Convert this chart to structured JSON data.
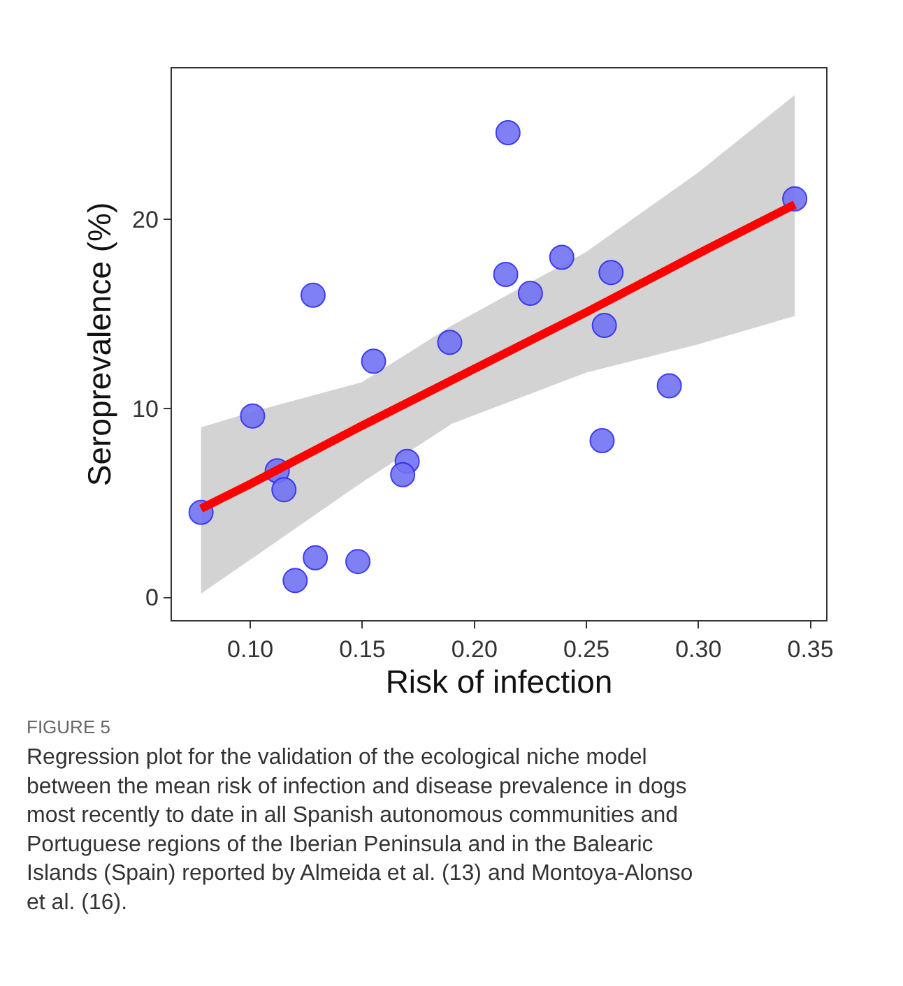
{
  "chart_data": {
    "type": "scatter",
    "xlabel": "Risk of infection",
    "ylabel": "Seroprevalence (%)",
    "series": [
      {
        "color": "#7373f5",
        "marker": "circle",
        "x": [
          0.078,
          0.101,
          0.112,
          0.115,
          0.128,
          0.12,
          0.129,
          0.148,
          0.155,
          0.17,
          0.168,
          0.189,
          0.215,
          0.214,
          0.225,
          0.239,
          0.261,
          0.258,
          0.257,
          0.287,
          0.343
        ],
        "values": [
          4.5,
          9.6,
          6.7,
          5.7,
          16.0,
          0.9,
          2.1,
          1.9,
          12.5,
          7.2,
          6.5,
          13.5,
          24.6,
          17.1,
          16.1,
          18.0,
          17.2,
          14.4,
          8.3,
          11.2,
          21.1
        ]
      },
      {
        "type": "line",
        "color": "#ff0000",
        "marker": "none",
        "line_style": "solid",
        "x": [
          0.078,
          0.1,
          0.15,
          0.19,
          0.25,
          0.3,
          0.343
        ],
        "values": [
          4.7,
          6.0,
          9.1,
          11.5,
          15.1,
          18.2,
          20.8
        ],
        "lower": [
          0.2,
          2.0,
          6.1,
          9.2,
          11.9,
          13.4,
          14.9
        ],
        "upper": [
          9.0,
          9.8,
          11.4,
          14.4,
          18.3,
          22.5,
          26.6
        ]
      }
    ],
    "xlim": [
      0.065,
      0.357
    ],
    "ylim": [
      -1.2,
      28.0
    ],
    "xticks": [
      {
        "value": 0.1,
        "label": "0.10"
      },
      0.15,
      {
        "value": 0.2,
        "label": "0.20"
      },
      0.25,
      {
        "value": 0.3,
        "label": "0.30"
      },
      0.35
    ],
    "yticks": [
      0,
      10,
      20
    ],
    "annotations": [
      "FIGURE 5",
      "Regression plot for the validation of the ecological niche model between the mean risk of infection and disease prevalence in dogs most recently to date in all Spanish autonomous communities and Portuguese regions of the Iberian Peninsula and in the Balearic Islands (Spain) reported by Almeida et al. (13) and Montoya-Alonso et al. (16)."
    ]
  }
}
